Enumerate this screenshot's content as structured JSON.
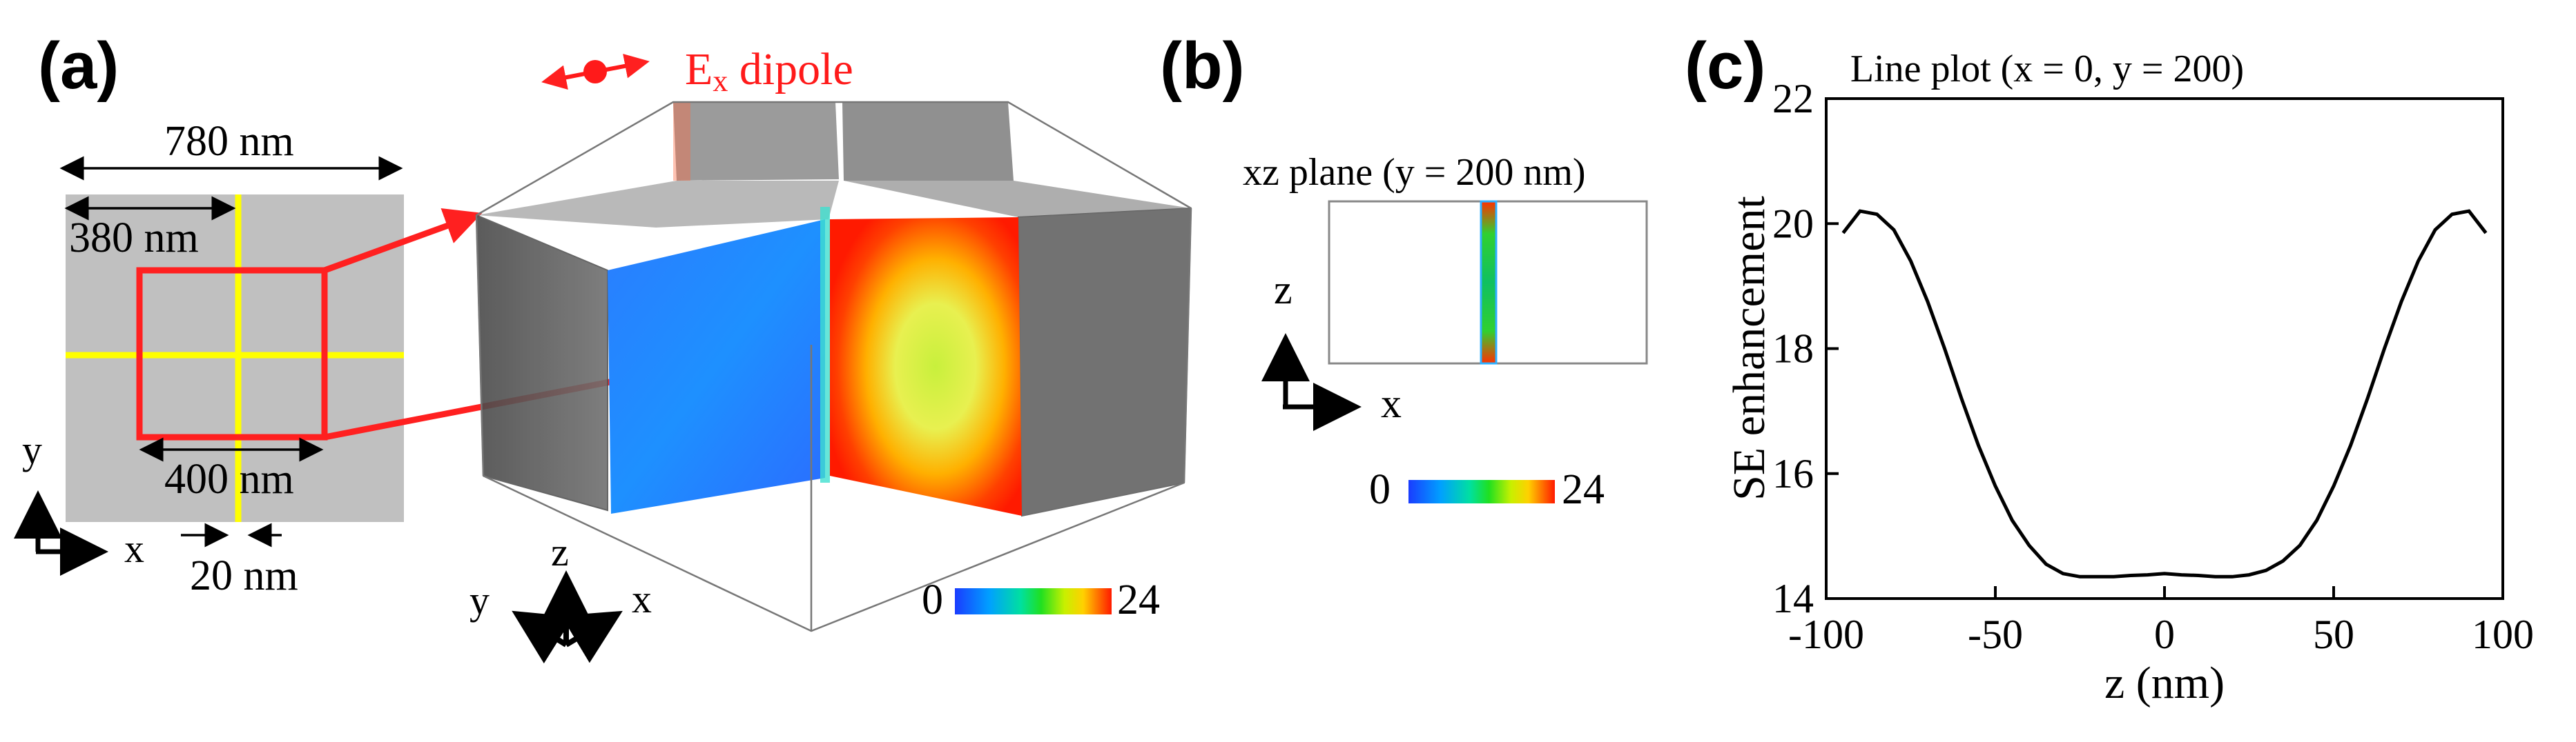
{
  "panel_a": {
    "label": "(a)",
    "dipole_label": "E",
    "dipole_sub": "x",
    "dipole_suffix": " dipole",
    "dim_780": "780 nm",
    "dim_380": "380 nm",
    "dim_400": "400 nm",
    "dim_20": "20 nm",
    "axis_y": "y",
    "axis_x": "x",
    "axis3d_z": "z",
    "axis3d_y": "y",
    "axis3d_x": "x",
    "cbar_min": "0",
    "cbar_max": "24",
    "colors": {
      "dipole": "#ff1a1a",
      "cell_outline": "#ff2020",
      "gap_lines": "#ffff00",
      "substrate": "#c0c0c0"
    }
  },
  "panel_b": {
    "label": "(b)",
    "title": "xz plane (y = 200 nm)",
    "axis_z": "z",
    "axis_x": "x",
    "cbar_min": "0",
    "cbar_max": "24"
  },
  "panel_c": {
    "label": "(c)"
  },
  "chart_data": {
    "type": "line",
    "title": "Line plot (x = 0, y = 200)",
    "xlabel": "z (nm)",
    "ylabel": "SE enhancement",
    "xlim": [
      -100,
      100
    ],
    "ylim": [
      14,
      22
    ],
    "xticks": [
      -100,
      -50,
      0,
      50,
      100
    ],
    "yticks": [
      14,
      16,
      18,
      20,
      22
    ],
    "grid": false,
    "series": [
      {
        "x": [
          -95,
          -90,
          -85,
          -80,
          -75,
          -70,
          -65,
          -60,
          -55,
          -50,
          -45,
          -40,
          -35,
          -30,
          -25,
          -20,
          -15,
          -10,
          -5,
          0,
          5,
          10,
          15,
          20,
          25,
          30,
          35,
          40,
          45,
          50,
          55,
          60,
          65,
          70,
          75,
          80,
          85,
          90,
          95
        ],
        "y": [
          19.85,
          20.2,
          20.15,
          19.9,
          19.4,
          18.75,
          18.0,
          17.2,
          16.45,
          15.8,
          15.25,
          14.85,
          14.55,
          14.4,
          14.35,
          14.35,
          14.35,
          14.37,
          14.38,
          14.4,
          14.38,
          14.37,
          14.35,
          14.35,
          14.38,
          14.45,
          14.6,
          14.85,
          15.25,
          15.8,
          16.45,
          17.2,
          18.0,
          18.75,
          19.4,
          19.9,
          20.15,
          20.2,
          19.85
        ]
      }
    ]
  }
}
